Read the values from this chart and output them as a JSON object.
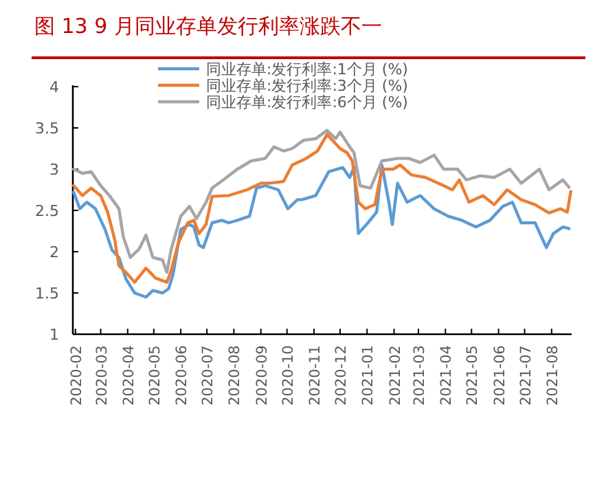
{
  "chart_data": {
    "type": "line",
    "title": "图 13 9 月同业存单发行利率涨跌不一",
    "xlim": [
      "2020-01-29",
      "2021-08-24"
    ],
    "xticks": [
      "2020-02",
      "2020-03",
      "2020-04",
      "2020-05",
      "2020-06",
      "2020-07",
      "2020-08",
      "2020-09",
      "2020-10",
      "2020-11",
      "2020-12",
      "2021-01",
      "2021-02",
      "2021-03",
      "2021-04",
      "2021-05",
      "2021-06",
      "2021-07",
      "2021-08"
    ],
    "ylim": [
      1,
      4
    ],
    "yticks": [
      1,
      1.5,
      2,
      2.5,
      3,
      3.5,
      4
    ],
    "legend": "top",
    "grid": false,
    "line_style": "solid",
    "series": [
      {
        "name": "同业存单:发行利率:1个月 (%)",
        "color": "#5b9bd5",
        "x": [
          "2020-01-30",
          "2020-02-06",
          "2020-02-14",
          "2020-02-24",
          "2020-03-06",
          "2020-03-14",
          "2020-03-22",
          "2020-03-30",
          "2020-04-09",
          "2020-04-22",
          "2020-04-30",
          "2020-05-11",
          "2020-05-18",
          "2020-05-23",
          "2020-06-01",
          "2020-06-11",
          "2020-06-16",
          "2020-06-22",
          "2020-06-27",
          "2020-07-07",
          "2020-07-18",
          "2020-07-26",
          "2020-08-05",
          "2020-08-19",
          "2020-08-27",
          "2020-09-06",
          "2020-09-21",
          "2020-10-02",
          "2020-10-13",
          "2020-10-18",
          "2020-11-03",
          "2020-11-18",
          "2020-12-04",
          "2020-12-12",
          "2020-12-17",
          "2020-12-22",
          "2021-01-02",
          "2021-01-12",
          "2021-01-18",
          "2021-01-26",
          "2021-01-30",
          "2021-02-05",
          "2021-02-16",
          "2021-03-03",
          "2021-03-19",
          "2021-04-04",
          "2021-04-20",
          "2021-05-06",
          "2021-05-22",
          "2021-06-06",
          "2021-06-17",
          "2021-06-27",
          "2021-07-13",
          "2021-07-26",
          "2021-08-03",
          "2021-08-14",
          "2021-08-21"
        ],
        "values": [
          2.72,
          2.52,
          2.6,
          2.52,
          2.27,
          2.02,
          1.93,
          1.67,
          1.5,
          1.45,
          1.53,
          1.5,
          1.55,
          1.72,
          2.27,
          2.33,
          2.3,
          2.08,
          2.05,
          2.35,
          2.38,
          2.35,
          2.38,
          2.43,
          2.77,
          2.8,
          2.75,
          2.52,
          2.63,
          2.63,
          2.68,
          2.97,
          3.02,
          2.9,
          3.02,
          2.22,
          2.35,
          2.48,
          3.05,
          2.6,
          2.33,
          2.83,
          2.6,
          2.68,
          2.52,
          2.43,
          2.38,
          2.3,
          2.38,
          2.55,
          2.6,
          2.35,
          2.35,
          2.05,
          2.22,
          2.3,
          2.28
        ]
      },
      {
        "name": "同业存单:发行利率:3个月 (%)",
        "color": "#ed7d31",
        "x": [
          "2020-01-30",
          "2020-02-09",
          "2020-02-19",
          "2020-03-01",
          "2020-03-09",
          "2020-03-17",
          "2020-03-22",
          "2020-03-30",
          "2020-04-09",
          "2020-04-22",
          "2020-05-03",
          "2020-05-16",
          "2020-05-21",
          "2020-05-29",
          "2020-06-09",
          "2020-06-16",
          "2020-06-22",
          "2020-06-30",
          "2020-07-07",
          "2020-07-26",
          "2020-08-16",
          "2020-09-01",
          "2020-09-11",
          "2020-09-27",
          "2020-10-07",
          "2020-10-23",
          "2020-11-05",
          "2020-11-16",
          "2020-12-01",
          "2020-12-09",
          "2020-12-15",
          "2020-12-22",
          "2020-12-30",
          "2021-01-10",
          "2021-01-18",
          "2021-01-31",
          "2021-02-08",
          "2021-02-21",
          "2021-03-09",
          "2021-03-24",
          "2021-04-09",
          "2021-04-17",
          "2021-04-28",
          "2021-05-14",
          "2021-05-27",
          "2021-06-11",
          "2021-06-27",
          "2021-07-13",
          "2021-07-29",
          "2021-08-11",
          "2021-08-19",
          "2021-08-23"
        ],
        "values": [
          2.8,
          2.68,
          2.77,
          2.68,
          2.48,
          2.15,
          1.83,
          1.75,
          1.63,
          1.8,
          1.68,
          1.63,
          1.77,
          2.1,
          2.35,
          2.38,
          2.22,
          2.33,
          2.67,
          2.68,
          2.75,
          2.83,
          2.83,
          2.85,
          3.05,
          3.13,
          3.22,
          3.42,
          3.25,
          3.2,
          3.1,
          2.6,
          2.52,
          2.57,
          3.0,
          3.0,
          3.05,
          2.93,
          2.9,
          2.83,
          2.75,
          2.87,
          2.6,
          2.68,
          2.57,
          2.75,
          2.63,
          2.57,
          2.47,
          2.52,
          2.48,
          2.73
        ]
      },
      {
        "name": "同业存单:发行利率:6个月 (%)",
        "color": "#a5a5a5",
        "x": [
          "2020-01-30",
          "2020-02-09",
          "2020-02-19",
          "2020-03-01",
          "2020-03-11",
          "2020-03-22",
          "2020-03-27",
          "2020-04-04",
          "2020-04-14",
          "2020-04-22",
          "2020-04-30",
          "2020-05-11",
          "2020-05-16",
          "2020-05-21",
          "2020-06-01",
          "2020-06-11",
          "2020-06-19",
          "2020-06-30",
          "2020-07-07",
          "2020-07-21",
          "2020-08-05",
          "2020-08-21",
          "2020-09-06",
          "2020-09-16",
          "2020-09-27",
          "2020-10-07",
          "2020-10-20",
          "2020-11-03",
          "2020-11-16",
          "2020-11-26",
          "2020-12-01",
          "2020-12-12",
          "2020-12-17",
          "2020-12-24",
          "2021-01-05",
          "2021-01-18",
          "2021-02-05",
          "2021-02-18",
          "2021-03-03",
          "2021-03-19",
          "2021-03-30",
          "2021-04-15",
          "2021-04-25",
          "2021-05-11",
          "2021-05-27",
          "2021-06-14",
          "2021-06-27",
          "2021-07-18",
          "2021-07-29",
          "2021-08-14",
          "2021-08-21"
        ],
        "values": [
          3.0,
          2.95,
          2.97,
          2.8,
          2.68,
          2.52,
          2.18,
          1.93,
          2.03,
          2.2,
          1.93,
          1.9,
          1.75,
          2.03,
          2.43,
          2.55,
          2.4,
          2.6,
          2.77,
          2.88,
          3.0,
          3.1,
          3.13,
          3.27,
          3.22,
          3.25,
          3.35,
          3.37,
          3.47,
          3.37,
          3.45,
          3.27,
          3.2,
          2.8,
          2.77,
          3.1,
          3.13,
          3.13,
          3.08,
          3.17,
          3.0,
          3.0,
          2.87,
          2.92,
          2.9,
          3.0,
          2.83,
          3.0,
          2.75,
          2.87,
          2.78
        ]
      }
    ]
  }
}
